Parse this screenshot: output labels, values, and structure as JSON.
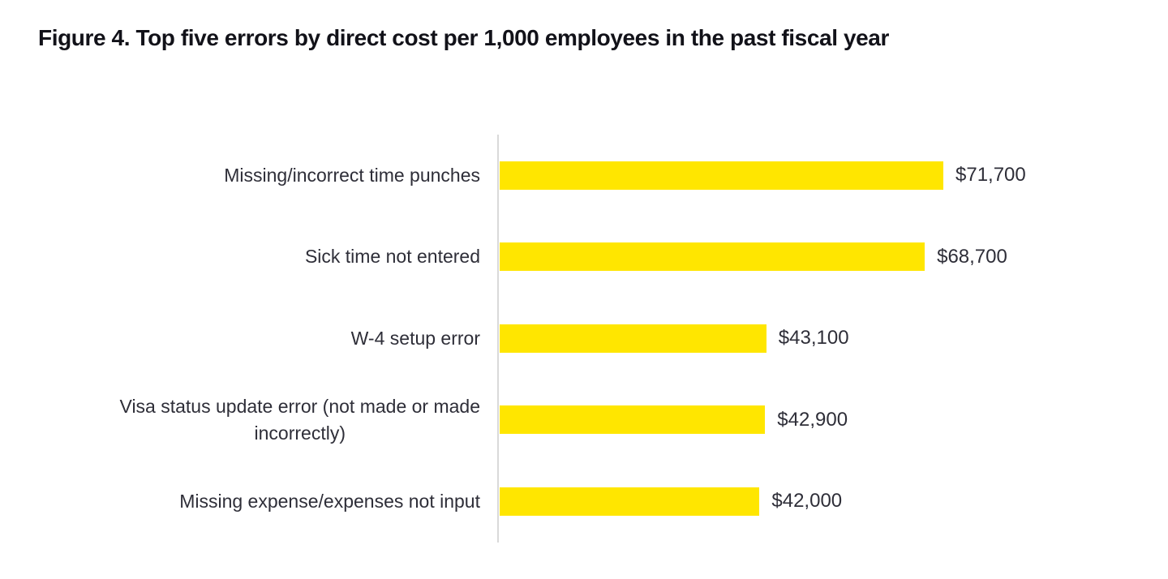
{
  "title": "Figure 4. Top five errors by direct cost per 1,000 employees in the past fiscal year",
  "chart_data": {
    "type": "bar",
    "orientation": "horizontal",
    "title": "Figure 4. Top five errors by direct cost per 1,000 employees in the past fiscal year",
    "categories": [
      "Missing/incorrect time punches",
      "Sick time not entered",
      "W-4 setup error",
      "Visa status update error (not made or made\nincorrectly)",
      "Missing expense/expenses not input"
    ],
    "values": [
      71700,
      68700,
      43100,
      42900,
      42000
    ],
    "value_labels": [
      "$71,700",
      "$68,700",
      "$43,100",
      "$42,900",
      "$42,000"
    ],
    "xlabel": "",
    "ylabel": "",
    "xlim": [
      0,
      78000
    ],
    "grid": false,
    "legend_position": "none",
    "bar_color": "#FFE600",
    "axis_line_color": "#D9D9D9",
    "label_text_color": "#2E2E38",
    "title_text_color": "#121219"
  }
}
